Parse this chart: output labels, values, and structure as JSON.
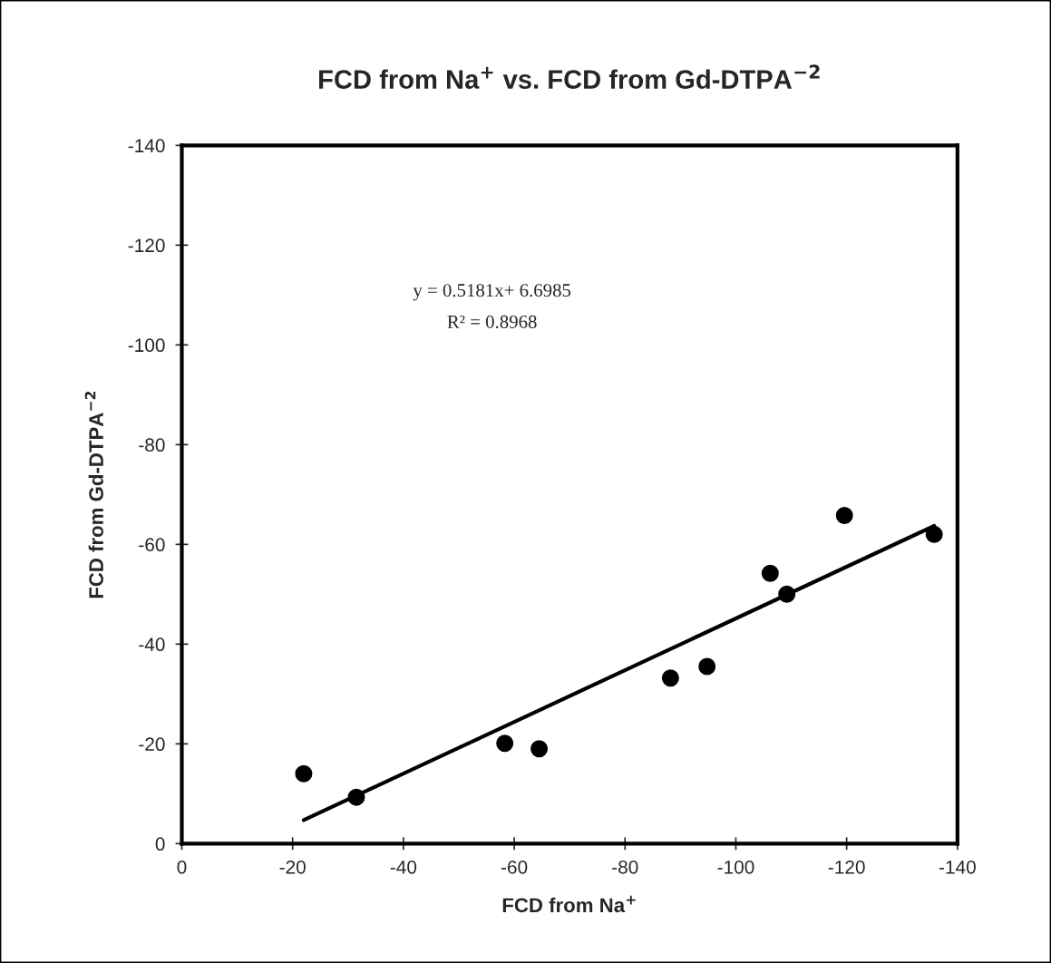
{
  "chart_data": {
    "type": "scatter",
    "title": "FCD from Na$^{+}$ vs. FCD from Gd-DTPA$^{−2}$",
    "xlabel": "FCD from Na$^{+}$",
    "ylabel": "FCD from Gd-DTPA$^{−2}$",
    "annotations": [
      "y = 0.5181x+ 6.6985",
      "R² = 0.8968"
    ],
    "series": [
      {
        "color": "#000000",
        "marker": "circle",
        "x": [
          -22,
          -31.5,
          -58.3,
          -64.5,
          -88.2,
          -94.8,
          -106.2,
          -109.2,
          -119.6,
          -135.8
        ],
        "values": [
          -14,
          -9.3,
          -20.1,
          -19.0,
          -33.2,
          -35.5,
          -54.2,
          -50.0,
          -65.8,
          -62.0
        ]
      },
      {
        "type": "line",
        "color": "#000000",
        "x": [
          -22,
          -135.8
        ],
        "values": [
          -4.7,
          -63.7
        ]
      }
    ],
    "xlim": [
      0,
      -140
    ],
    "ylim": [
      0,
      -140
    ],
    "xticks": [
      0,
      -20,
      -40,
      -60,
      -80,
      -100,
      -120,
      -140
    ],
    "yticks": [
      0,
      -20,
      -40,
      -60,
      -80,
      -100,
      -120,
      -140
    ],
    "grid": false,
    "legend": false
  }
}
